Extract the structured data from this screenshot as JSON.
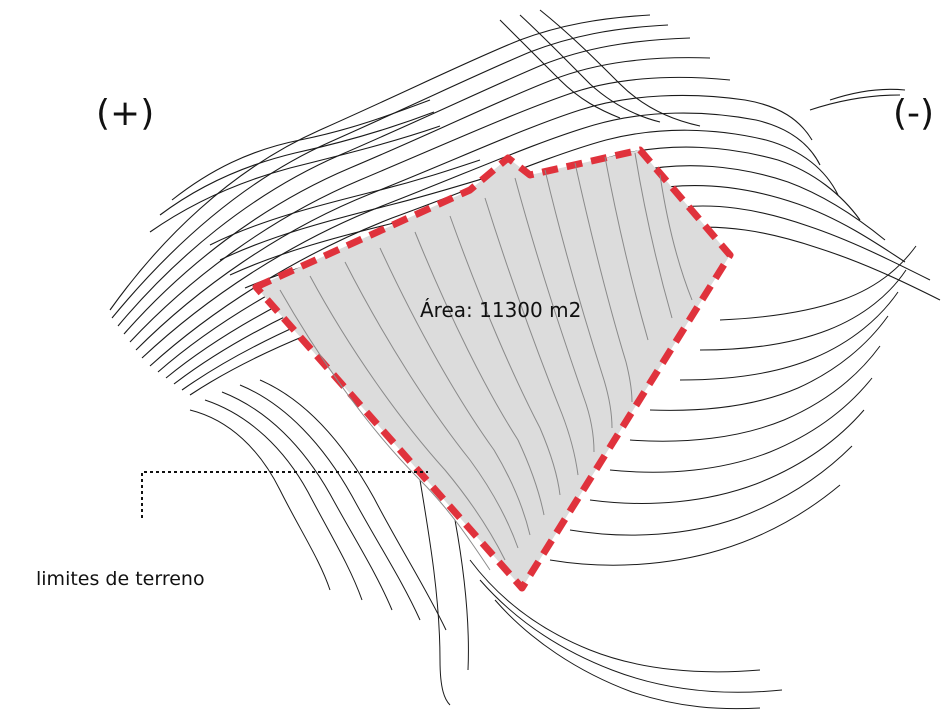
{
  "labels": {
    "high_side": "(+)",
    "low_side": "(-)",
    "area": "Área: 11300 m2",
    "limits": "limites de terreno"
  },
  "colors": {
    "background": "#ffffff",
    "contour_dark": "#1a1a1a",
    "contour_light": "#8a8a8a",
    "site_fill": "#dcdcdc",
    "site_border": "#e0323c",
    "leader_line": "#111111"
  }
}
